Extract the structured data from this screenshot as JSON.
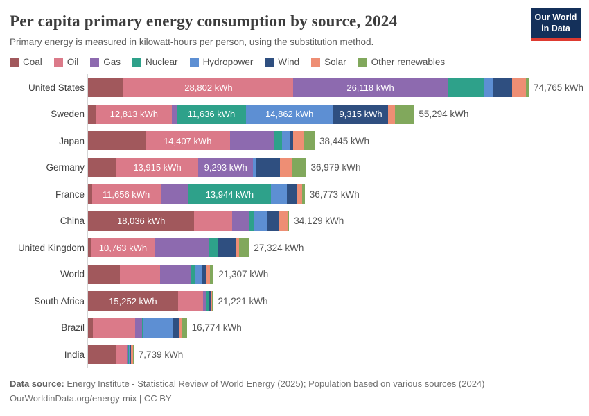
{
  "header": {
    "title": "Per capita primary energy consumption by source, 2024",
    "subtitle": "Primary energy is measured in kilowatt-hours per person, using the substitution method.",
    "logo": {
      "line1": "Our World",
      "line2": "in Data",
      "bg_color": "#14305A",
      "accent_color": "#DE3A30"
    }
  },
  "legend": {
    "items": [
      {
        "label": "Coal",
        "color": "#A1585C"
      },
      {
        "label": "Oil",
        "color": "#DB7A89"
      },
      {
        "label": "Gas",
        "color": "#8D6AAF"
      },
      {
        "label": "Nuclear",
        "color": "#2EA18A"
      },
      {
        "label": "Hydropower",
        "color": "#5D8FD3"
      },
      {
        "label": "Wind",
        "color": "#2F4F80"
      },
      {
        "label": "Solar",
        "color": "#EE8E74"
      },
      {
        "label": "Other renewables",
        "color": "#81A85C"
      }
    ]
  },
  "chart_data": {
    "type": "bar",
    "orientation": "horizontal",
    "unit": "kWh per person",
    "xmax": 74765,
    "sources": [
      "Coal",
      "Oil",
      "Gas",
      "Nuclear",
      "Hydropower",
      "Wind",
      "Solar",
      "Other renewables"
    ],
    "rows": [
      {
        "country": "United States",
        "total": 74765,
        "total_label": "74,765 kWh",
        "values": [
          6050,
          28802,
          26118,
          6180,
          1560,
          3250,
          2290,
          515
        ],
        "segment_labels": [
          null,
          "28,802 kWh",
          "26,118 kWh",
          null,
          null,
          null,
          null,
          null
        ]
      },
      {
        "country": "Sweden",
        "total": 55294,
        "total_label": "55,294 kWh",
        "values": [
          1390,
          12813,
          908,
          11636,
          14862,
          9315,
          1160,
          3210
        ],
        "segment_labels": [
          null,
          "12,813 kWh",
          null,
          "11,636 kWh",
          "14,862 kWh",
          "9,315 kWh",
          null,
          null
        ]
      },
      {
        "country": "Japan",
        "total": 38445,
        "total_label": "38,445 kWh",
        "values": [
          9700,
          14407,
          7500,
          1350,
          1400,
          400,
          1800,
          1888
        ],
        "segment_labels": [
          null,
          "14,407 kWh",
          null,
          null,
          null,
          null,
          null,
          null
        ]
      },
      {
        "country": "Germany",
        "total": 36979,
        "total_label": "36,979 kWh",
        "values": [
          4800,
          13915,
          9293,
          0,
          600,
          3900,
          2000,
          2471
        ],
        "segment_labels": [
          null,
          "13,915 kWh",
          "9,293 kWh",
          null,
          null,
          null,
          null,
          null
        ]
      },
      {
        "country": "France",
        "total": 36773,
        "total_label": "36,773 kWh",
        "values": [
          650,
          11656,
          4750,
          13944,
          2750,
          1800,
          800,
          423
        ],
        "segment_labels": [
          null,
          "11,656 kWh",
          null,
          "13,944 kWh",
          null,
          null,
          null,
          null
        ]
      },
      {
        "country": "China",
        "total": 34129,
        "total_label": "34,129 kWh",
        "values": [
          18036,
          6400,
          2850,
          900,
          2200,
          2000,
          1500,
          243
        ],
        "segment_labels": [
          "18,036 kWh",
          null,
          null,
          null,
          null,
          null,
          null,
          null
        ]
      },
      {
        "country": "United Kingdom",
        "total": 27324,
        "total_label": "27,324 kWh",
        "values": [
          550,
          10763,
          9200,
          1450,
          150,
          3050,
          450,
          1711
        ],
        "segment_labels": [
          null,
          "10,763 kWh",
          null,
          null,
          null,
          null,
          null,
          null
        ]
      },
      {
        "country": "World",
        "total": 21307,
        "total_label": "21,307 kWh",
        "values": [
          5400,
          6800,
          5150,
          800,
          1300,
          700,
          600,
          557
        ],
        "segment_labels": [
          null,
          null,
          null,
          null,
          null,
          null,
          null,
          null
        ]
      },
      {
        "country": "South Africa",
        "total": 21221,
        "total_label": "21,221 kWh",
        "values": [
          15252,
          4300,
          550,
          300,
          50,
          300,
          350,
          119
        ],
        "segment_labels": [
          "15,252 kWh",
          null,
          null,
          null,
          null,
          null,
          null,
          null
        ]
      },
      {
        "country": "Brazil",
        "total": 16774,
        "total_label": "16,774 kWh",
        "values": [
          790,
          7200,
          1180,
          235,
          4900,
          1100,
          640,
          729
        ],
        "segment_labels": [
          null,
          null,
          null,
          null,
          null,
          null,
          null,
          null
        ]
      },
      {
        "country": "India",
        "total": 7739,
        "total_label": "7,739 kWh",
        "values": [
          4650,
          1880,
          320,
          60,
          320,
          120,
          240,
          149
        ],
        "segment_labels": [
          null,
          null,
          null,
          null,
          null,
          null,
          null,
          null
        ]
      }
    ]
  },
  "footer": {
    "source_prefix": "Data source:",
    "source_text": " Energy Institute - Statistical Review of World Energy (2025); Population based on various sources (2024)",
    "license_line": "OurWorldinData.org/energy-mix | CC BY"
  }
}
